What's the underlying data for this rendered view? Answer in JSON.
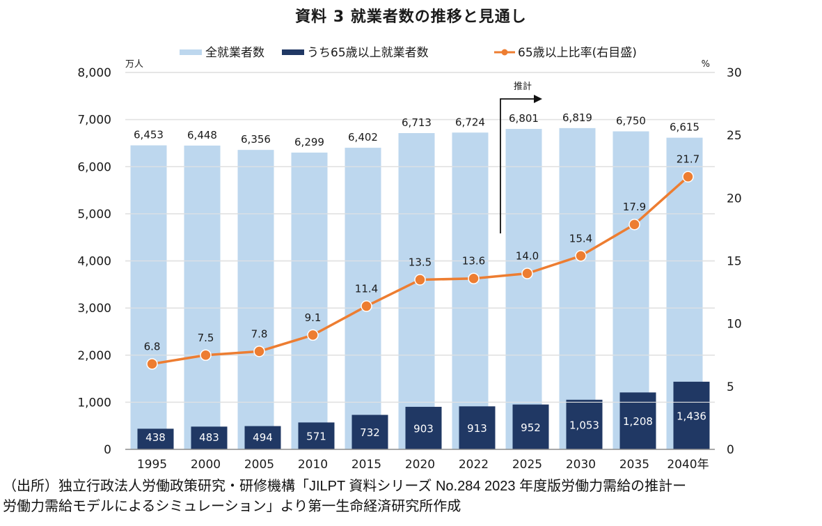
{
  "chart_data": {
    "type": "bar",
    "title": "資料 3  就業者数の推移と見通し",
    "categories": [
      "1995",
      "2000",
      "2005",
      "2010",
      "2015",
      "2020",
      "2022",
      "2025",
      "2030",
      "2035",
      "2040年"
    ],
    "series": [
      {
        "name": "全就業者数",
        "kind": "bar",
        "axis": "left",
        "color": "#bdd7ee",
        "values": [
          6453,
          6448,
          6356,
          6299,
          6402,
          6713,
          6724,
          6801,
          6819,
          6750,
          6615
        ],
        "labels": [
          "6,453",
          "6,448",
          "6,356",
          "6,299",
          "6,402",
          "6,713",
          "6,724",
          "6,801",
          "6,819",
          "6,750",
          "6,615"
        ]
      },
      {
        "name": "うち65歳以上就業者数",
        "kind": "bar",
        "axis": "left",
        "color": "#203864",
        "values": [
          438,
          483,
          494,
          571,
          732,
          903,
          913,
          952,
          1053,
          1208,
          1436
        ],
        "labels": [
          "438",
          "483",
          "494",
          "571",
          "732",
          "903",
          "913",
          "952",
          "1,053",
          "1,208",
          "1,436"
        ]
      },
      {
        "name": "65歳以上比率(右目盛)",
        "kind": "line",
        "axis": "right",
        "color": "#ed7d31",
        "values": [
          6.8,
          7.5,
          7.8,
          9.1,
          11.4,
          13.5,
          13.6,
          14.0,
          15.4,
          17.9,
          21.7
        ],
        "labels": [
          "6.8",
          "7.5",
          "7.8",
          "9.1",
          "11.4",
          "13.5",
          "13.6",
          "14.0",
          "15.4",
          "17.9",
          "21.7"
        ]
      }
    ],
    "left_axis": {
      "unit": "万人",
      "range": [
        0,
        8000
      ],
      "step": 1000,
      "ticks": [
        "0",
        "1,000",
        "2,000",
        "3,000",
        "4,000",
        "5,000",
        "6,000",
        "7,000",
        "8,000"
      ]
    },
    "right_axis": {
      "unit": "%",
      "range": [
        0,
        30
      ],
      "step": 5,
      "ticks": [
        "0",
        "5",
        "10",
        "15",
        "20",
        "25",
        "30"
      ]
    },
    "grid": true,
    "legend_position": "top-center",
    "annotation": {
      "text": "推計",
      "from_category_index": 7,
      "description": "projection starts between 2022 and 2025"
    }
  },
  "source_note": [
    "（出所）独立行政法人労働政策研究・研修機構「JILPT 資料シリーズ No.284 2023 年度版労働力需給の推計ー",
    "労働力需給モデルによるシミュレーション」より第一生命経済研究所作成"
  ]
}
